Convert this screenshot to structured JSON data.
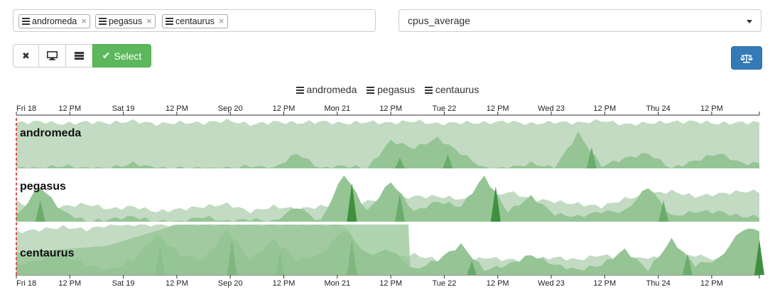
{
  "hosts": {
    "tags": [
      {
        "name": "andromeda",
        "remove": "×"
      },
      {
        "name": "pegasus",
        "remove": "×"
      },
      {
        "name": "centaurus",
        "remove": "×"
      }
    ]
  },
  "metric": {
    "selected": "cpus_average"
  },
  "toolbar": {
    "clear_icon": "✖",
    "select_label": "Select"
  },
  "legend": [
    "andromeda",
    "pegasus",
    "centaurus"
  ],
  "axis": {
    "ticks": [
      "Fri 18",
      "12 PM",
      "Sat 19",
      "12 PM",
      "Sep 20",
      "12 PM",
      "Mon 21",
      "12 PM",
      "Tue 22",
      "12 PM",
      "Wed 23",
      "12 PM",
      "Thu 24",
      "12 PM"
    ]
  },
  "colors": {
    "band_light": "#c2dbc2",
    "band_mid": "#95c495",
    "band_dark": "#6aac6a",
    "band_darkest": "#3f8f3f",
    "select_green": "#5cb85c",
    "primary_blue": "#337ab7",
    "marker_red": "#d9534f"
  },
  "chart_data": {
    "type": "area",
    "title": "",
    "x_ticks": [
      "Fri 18",
      "12 PM",
      "Sat 19",
      "12 PM",
      "Sep 20",
      "12 PM",
      "Mon 21",
      "12 PM",
      "Tue 22",
      "12 PM",
      "Wed 23",
      "12 PM",
      "Thu 24",
      "12 PM"
    ],
    "series": [
      {
        "name": "andromeda",
        "base": [
          0.9,
          0.93,
          0.88,
          0.92,
          0.9,
          0.94,
          0.88,
          0.91,
          0.9,
          0.95,
          0.87,
          0.92,
          0.9,
          0.93,
          0.89,
          0.92,
          0.9,
          0.94,
          0.88,
          0.91,
          0.9,
          0.93,
          0.88,
          0.92,
          0.9,
          0.95,
          0.87,
          0.9,
          0.92,
          0.93,
          0.89,
          0.91
        ],
        "peaks": [
          0,
          0,
          0.05,
          0,
          0,
          0.1,
          0,
          0,
          0,
          0,
          0.05,
          0,
          0.3,
          0,
          0.05,
          0,
          0.55,
          0.4,
          0.6,
          0.3,
          0,
          0,
          0.1,
          0,
          0.7,
          0.05,
          0.2,
          0.3,
          0,
          0.15,
          0.3,
          0.1
        ]
      },
      {
        "name": "pegasus",
        "base": [
          0.4,
          0.2,
          0.3,
          0.35,
          0.25,
          0.3,
          0.2,
          0.25,
          0.3,
          0.35,
          0.2,
          0.3,
          0.25,
          0.3,
          0.35,
          0.4,
          0.45,
          0.5,
          0.5,
          0.45,
          0.4,
          0.6,
          0.45,
          0.4,
          0.35,
          0.3,
          0.45,
          0.55,
          0.6,
          0.5,
          0.55,
          0.6
        ],
        "peaks": [
          0.1,
          0.7,
          0.2,
          0,
          0.05,
          0.1,
          0,
          0,
          0.1,
          0,
          0.05,
          0,
          0.3,
          0,
          0.95,
          0.2,
          0.8,
          0.2,
          0.4,
          0.3,
          0.9,
          0.2,
          0.5,
          0.15,
          0.1,
          0.2,
          0.2,
          0.7,
          0.1,
          0.2,
          0.2,
          0.1
        ]
      },
      {
        "name": "centaurus",
        "base": [
          0.85,
          0.9,
          0.95,
          0.9,
          1,
          1,
          1,
          1,
          1,
          1,
          1,
          1,
          1,
          1,
          1,
          0.3,
          0.35,
          0.4,
          0.3,
          0.2,
          0.35,
          0.3,
          0.3,
          0.35,
          0.3,
          0.4,
          0.3,
          0.35,
          0.3,
          0.4,
          0.3,
          0.35
        ],
        "peaks": [
          0.2,
          0.3,
          0.4,
          0.2,
          0.1,
          0.3,
          0.8,
          0.4,
          0.3,
          0.9,
          0.3,
          0.7,
          0.3,
          0.4,
          0.9,
          0.4,
          0.5,
          0.1,
          0.3,
          0.6,
          0.1,
          0.2,
          0.4,
          0.2,
          0.1,
          0.2,
          0.5,
          0.1,
          0.7,
          0.2,
          0.3,
          0.9
        ]
      }
    ]
  }
}
